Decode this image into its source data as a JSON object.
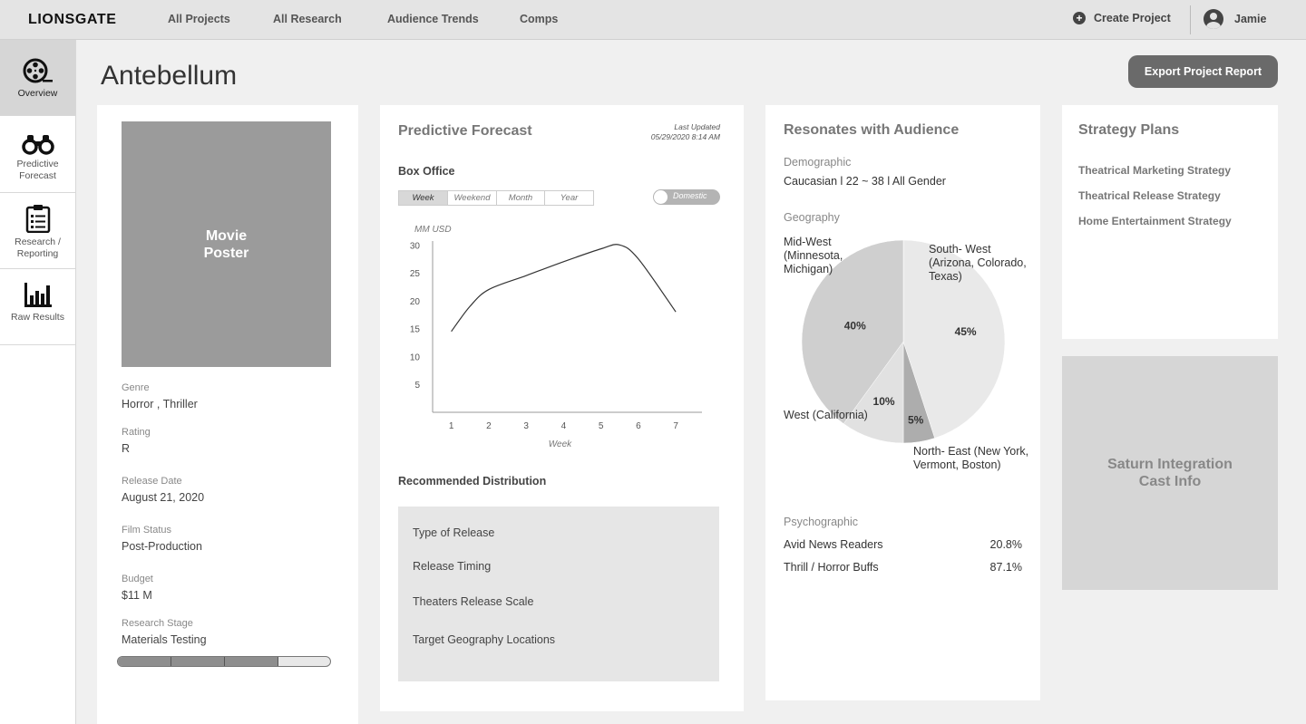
{
  "brand": "LIONSGATE",
  "nav": {
    "links": [
      "All Projects",
      "All Research",
      "Audience Trends",
      "Comps"
    ],
    "create_label": "Create Project",
    "user_name": "Jamie"
  },
  "sidebar": {
    "items": [
      {
        "label": "Overview",
        "icon": "film-reel-icon",
        "active": true
      },
      {
        "label": "Predictive Forecast",
        "icon": "binoculars-icon",
        "active": false
      },
      {
        "label": "Research / Reporting",
        "icon": "clipboard-icon",
        "active": false
      },
      {
        "label": "Raw Results",
        "icon": "bar-chart-icon",
        "active": false
      }
    ]
  },
  "page": {
    "title": "Antebellum",
    "export_label": "Export Project Report"
  },
  "project": {
    "poster_label": "Movie Poster",
    "fields": [
      {
        "label": "Genre",
        "value": "Horror , Thriller"
      },
      {
        "label": "Rating",
        "value": "R"
      },
      {
        "label": "Release Date",
        "value": "August 21, 2020"
      },
      {
        "label": "Film Status",
        "value": "Post-Production"
      },
      {
        "label": "Budget",
        "value": "$11 M"
      },
      {
        "label": "Research Stage",
        "value": "Materials Testing"
      }
    ],
    "research_progress": 0.75
  },
  "forecast": {
    "title": "Predictive Forecast",
    "last_updated_label": "Last Updated",
    "last_updated_value": "05/29/2020  8:14 AM",
    "box_office_label": "Box Office",
    "tabs": [
      "Week",
      "Weekend",
      "Month",
      "Year"
    ],
    "active_tab": "Week",
    "toggle_label": "Domestic",
    "distribution_title": "Recommended Distribution",
    "distribution_items": [
      "Type of Release",
      "Release Timing",
      "Theaters Release Scale",
      "Target Geography Locations"
    ]
  },
  "chart_data": {
    "type": "line",
    "ylabel": "MM USD",
    "xlabel": "Week",
    "x": [
      1,
      1.5,
      2,
      3,
      4,
      5,
      5.5,
      6,
      7
    ],
    "series": [
      {
        "values": [
          14.5,
          19.0,
          22.0,
          24.5,
          27.0,
          29.3,
          30.0,
          27.5,
          18.0
        ]
      }
    ],
    "x_ticks": [
      1,
      2,
      3,
      4,
      5,
      6,
      7
    ],
    "y_ticks": [
      5,
      10,
      15,
      20,
      25,
      30
    ],
    "xlim": [
      0.5,
      7.7
    ],
    "ylim": [
      0,
      32
    ],
    "grid": false
  },
  "audience": {
    "title": "Resonates with Audience",
    "demographic_label": "Demographic",
    "demographic_value": "Caucasian l  22 ~ 38  l  All Gender",
    "geography_label": "Geography",
    "geography": {
      "type": "pie",
      "slices": [
        {
          "name": "South- West (Arizona, Colorado, Texas)",
          "value": 45,
          "label": "45%",
          "color": "#e9e9e9"
        },
        {
          "name": "North- East (New York, Vermont, Boston)",
          "value": 5,
          "label": "5%",
          "color": "#adadad"
        },
        {
          "name": "West (California)",
          "value": 10,
          "label": "10%",
          "color": "#e1e1e1"
        },
        {
          "name": "Mid-West (Minnesota, Michigan)",
          "value": 40,
          "label": "40%",
          "color": "#cfcfcf"
        }
      ],
      "label_lines": {
        "south_west": [
          "South- West",
          "(Arizona, Colorado,",
          "Texas)"
        ],
        "north_east": [
          "North- East (New York,",
          "Vermont, Boston)"
        ],
        "west": [
          "West (California)"
        ],
        "mid_west": [
          "Mid-West",
          "(Minnesota,",
          "Michigan)"
        ]
      }
    },
    "psychographic_label": "Psychographic",
    "psychographic": [
      {
        "name": "Avid News Readers",
        "value": "20.8%"
      },
      {
        "name": "Thrill / Horror Buffs",
        "value": "87.1%"
      }
    ]
  },
  "strategy": {
    "title": "Strategy Plans",
    "links": [
      "Theatrical Marketing Strategy",
      "Theatrical Release Strategy",
      "Home Entertainment Strategy"
    ]
  },
  "saturn": {
    "label": "Saturn Integration Cast Info"
  }
}
